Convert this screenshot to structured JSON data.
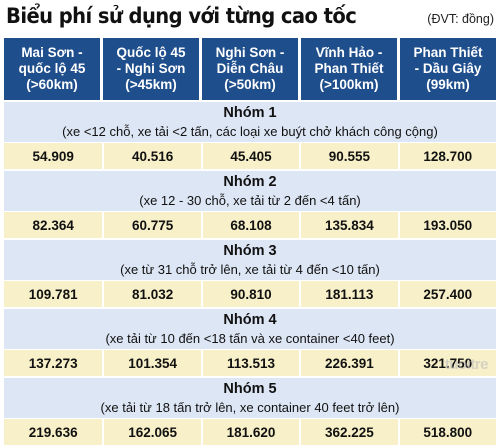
{
  "title": "Biểu phí sử dụng với từng cao tốc",
  "unit": "(ĐVT: đồng)",
  "columns": [
    {
      "line1": "Mai Sơn -",
      "line2": "quốc lộ 45",
      "line3": "(>60km)"
    },
    {
      "line1": "Quốc lộ 45",
      "line2": "- Nghi Sơn",
      "line3": "(>45km)"
    },
    {
      "line1": "Nghi Sơn -",
      "line2": "Diễn Châu",
      "line3": "(>50km)"
    },
    {
      "line1": "Vĩnh Hảo -",
      "line2": "Phan Thiết",
      "line3": "(>100km)"
    },
    {
      "line1": "Phan Thiết",
      "line2": "- Dầu Giây",
      "line3": "(99km)"
    }
  ],
  "groups": [
    {
      "name": "Nhóm 1",
      "desc": "(xe <12 chỗ, xe tải <2 tấn, các loại xe buýt chở khách công cộng)",
      "values": [
        "54.909",
        "40.516",
        "45.405",
        "90.555",
        "128.700"
      ]
    },
    {
      "name": "Nhóm 2",
      "desc": "(xe 12 - 30 chỗ, xe tải từ 2 đến <4 tấn)",
      "values": [
        "82.364",
        "60.775",
        "68.108",
        "135.834",
        "193.050"
      ]
    },
    {
      "name": "Nhóm 3",
      "desc": "(xe từ 31 chỗ trở lên, xe tải từ 4 đến <10 tấn)",
      "values": [
        "109.781",
        "81.032",
        "90.810",
        "181.113",
        "257.400"
      ]
    },
    {
      "name": "Nhóm 4",
      "desc": "(xe tải từ 10 đến <18 tấn và xe container <40 feet)",
      "values": [
        "137.273",
        "101.354",
        "113.513",
        "226.391",
        "321.750"
      ]
    },
    {
      "name": "Nhóm 5",
      "desc": "(xe tải từ 18 tấn trở lên, xe container 40 feet trở lên)",
      "values": [
        "219.636",
        "162.065",
        "181.620",
        "362.225",
        "518.800"
      ]
    }
  ],
  "watermark": "tuoitre"
}
